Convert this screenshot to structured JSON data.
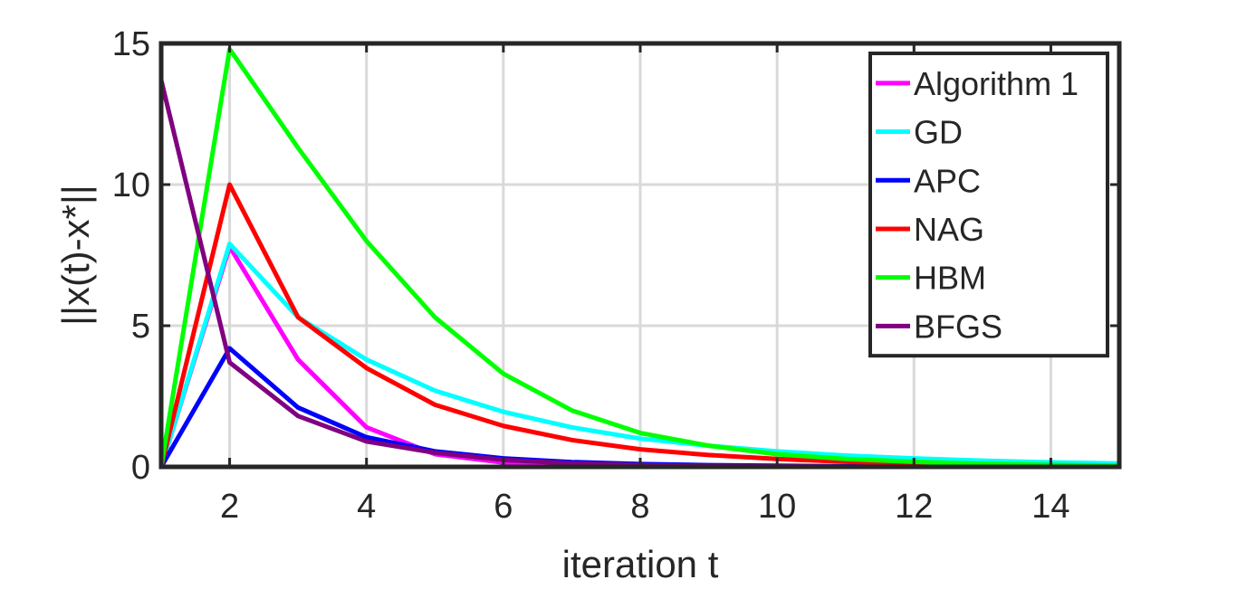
{
  "chart_data": {
    "type": "line",
    "title": "",
    "xlabel": "iteration t",
    "ylabel": "||x(t)-x*||",
    "xlim": [
      1,
      15
    ],
    "ylim": [
      0,
      15
    ],
    "xticks": [
      2,
      4,
      6,
      8,
      10,
      12,
      14
    ],
    "yticks": [
      0,
      5,
      10,
      15
    ],
    "grid": true,
    "legend_position": "top-right",
    "x": [
      1,
      2,
      3,
      4,
      5,
      6,
      7,
      8,
      9,
      10,
      11,
      12,
      13,
      14,
      15
    ],
    "series": [
      {
        "name": "Algorithm 1",
        "color": "#ff00ff",
        "values": [
          0,
          7.8,
          3.8,
          1.4,
          0.45,
          0.15,
          0.07,
          0.04,
          0.02,
          0.01,
          0.01,
          0.0,
          0.0,
          0.0,
          0.0
        ]
      },
      {
        "name": "GD",
        "color": "#00ffff",
        "values": [
          0,
          7.9,
          5.3,
          3.8,
          2.7,
          1.95,
          1.4,
          1.0,
          0.75,
          0.55,
          0.4,
          0.3,
          0.22,
          0.16,
          0.12
        ]
      },
      {
        "name": "APC",
        "color": "#0000ff",
        "values": [
          0,
          4.2,
          2.1,
          1.05,
          0.55,
          0.3,
          0.17,
          0.1,
          0.06,
          0.04,
          0.02,
          0.01,
          0.01,
          0.0,
          0.0
        ]
      },
      {
        "name": "NAG",
        "color": "#ff0000",
        "values": [
          0,
          10.0,
          5.3,
          3.5,
          2.2,
          1.45,
          0.95,
          0.62,
          0.42,
          0.28,
          0.18,
          0.12,
          0.08,
          0.05,
          0.03
        ]
      },
      {
        "name": "HBM",
        "color": "#00ff00",
        "values": [
          0,
          14.8,
          11.3,
          8.0,
          5.3,
          3.3,
          2.0,
          1.2,
          0.75,
          0.45,
          0.28,
          0.18,
          0.11,
          0.07,
          0.04
        ]
      },
      {
        "name": "BFGS",
        "color": "#800080",
        "values": [
          13.7,
          3.7,
          1.8,
          0.9,
          0.5,
          0.25,
          0.12,
          0.06,
          0.03,
          0.02,
          0.01,
          0.0,
          0.0,
          0.0,
          null
        ]
      }
    ]
  }
}
